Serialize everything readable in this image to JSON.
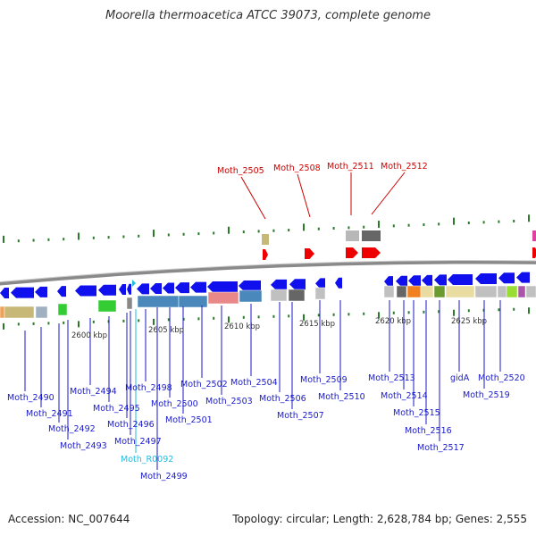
{
  "title": "Moorella thermoacetica ATCC 39073, complete genome",
  "footer": {
    "accession": "Accession: NC_007644",
    "summary": "Topology: circular; Length: 2,628,784 bp; Genes: 2,555"
  },
  "colors": {
    "backbone": "#8a8a8a",
    "gene_label": "#1a1acc",
    "highlight_label": "#cc0000",
    "rna_label": "#22bbdd",
    "tick": "#2a7a2a"
  },
  "scale_labels": [
    "2600 kbp",
    "2605 kbp",
    "2610 kbp",
    "2615 kbp",
    "2620 kbp",
    "2625 kbp"
  ],
  "top_labels": [
    "Moth_2505",
    "Moth_2508",
    "Moth_2511",
    "Moth_2512"
  ],
  "bottom_labels": [
    "Moth_2490",
    "Moth_2491",
    "Moth_2492",
    "Moth_2493",
    "Moth_2494",
    "Moth_2495",
    "Moth_2496",
    "Moth_2497",
    "Moth_R0092",
    "Moth_2498",
    "Moth_2499",
    "Moth_2500",
    "Moth_2501",
    "Moth_2502",
    "Moth_2503",
    "Moth_2504",
    "Moth_2506",
    "Moth_2507",
    "Moth_2509",
    "Moth_2510",
    "Moth_2513",
    "Moth_2514",
    "Moth_2515",
    "Moth_2516",
    "Moth_2517",
    "gidA",
    "Moth_2519",
    "Moth_2520"
  ]
}
